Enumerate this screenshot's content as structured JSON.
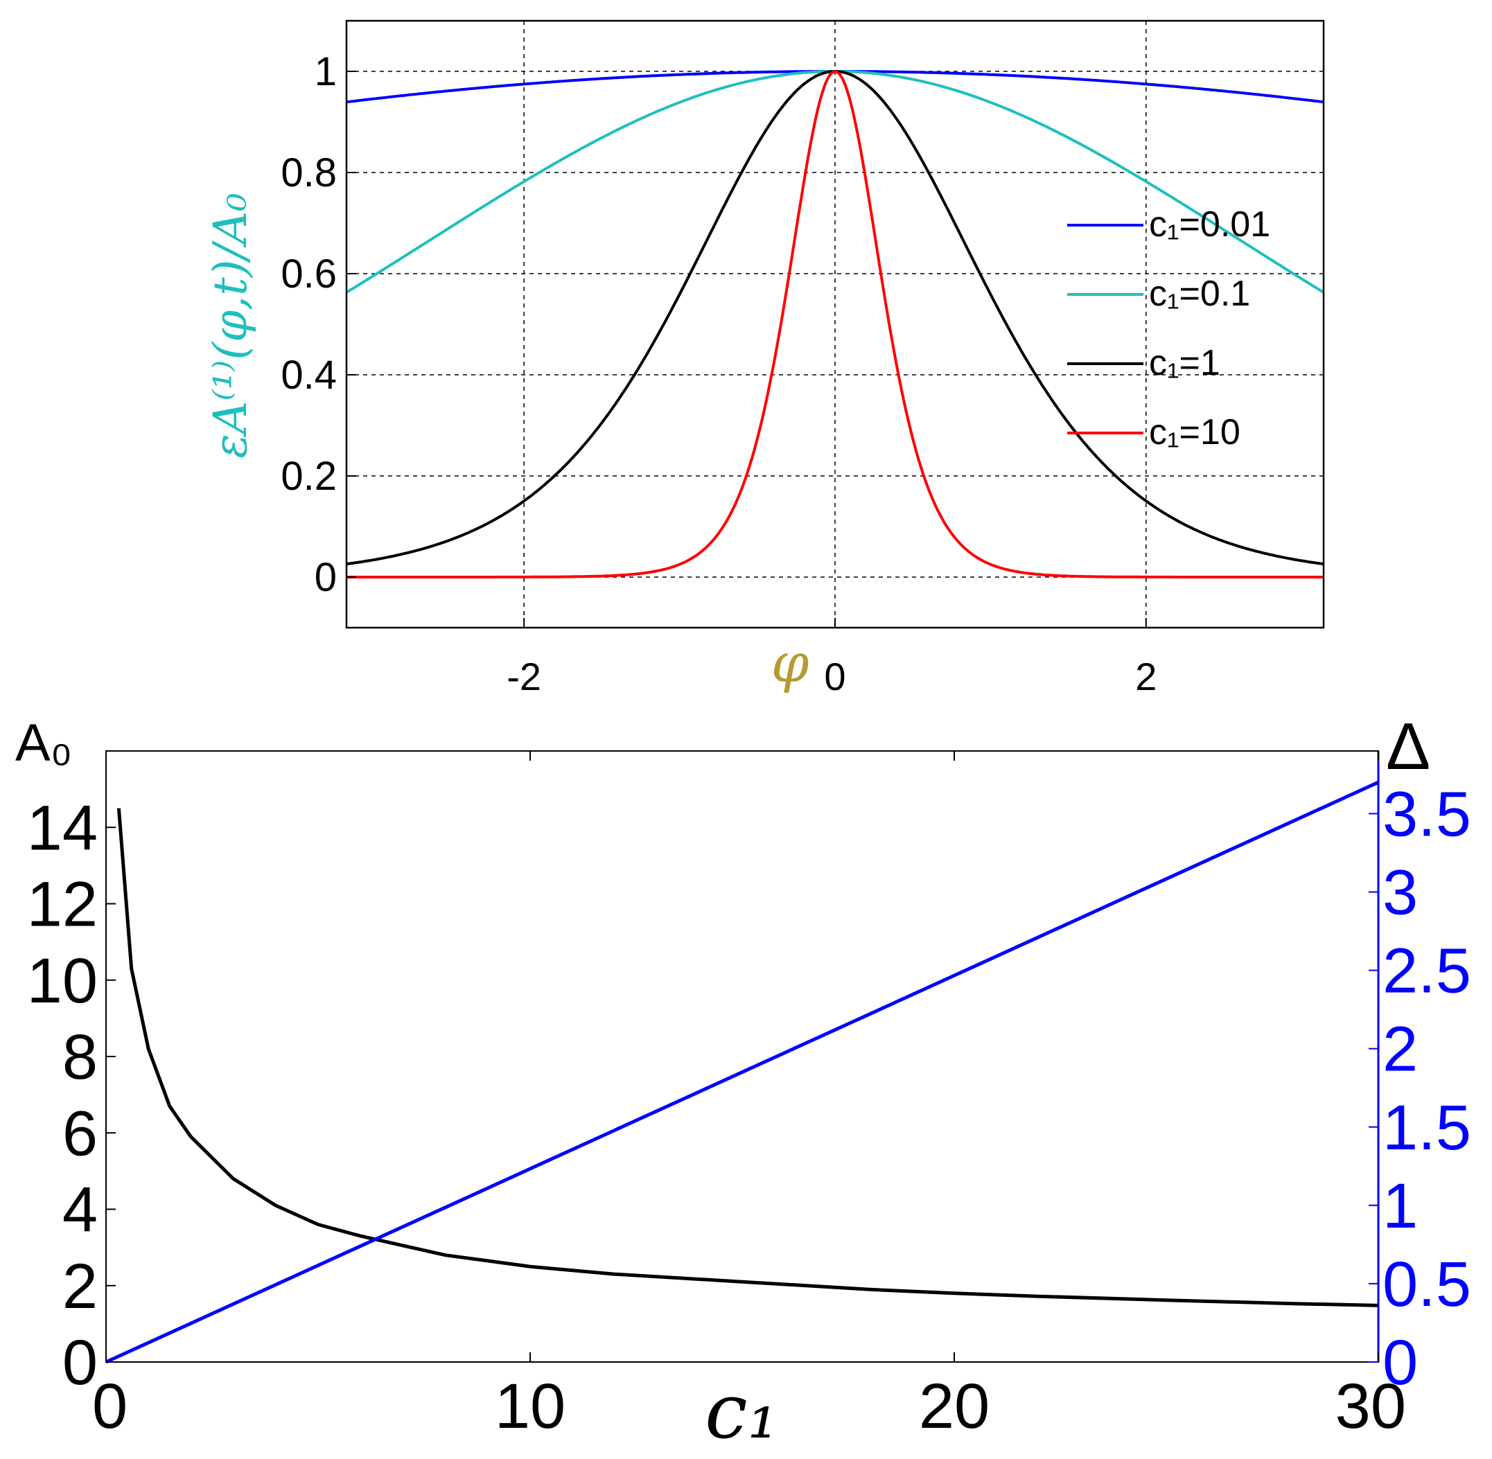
{
  "chart_data": [
    {
      "type": "line",
      "title": "",
      "xlabel": "φ",
      "ylabel": "εA⁽¹⁾(φ,t)/A₀",
      "xlim": [
        -3.1416,
        3.1416
      ],
      "ylim": [
        -0.1,
        1.1
      ],
      "x_ticks": [
        -2,
        0,
        2
      ],
      "y_ticks": [
        0,
        0.2,
        0.4,
        0.6,
        0.8,
        1
      ],
      "grid": true,
      "legend_position": "right",
      "series": [
        {
          "name": "c₁=0.01",
          "color": "#0000ff",
          "c1": 0.01
        },
        {
          "name": "c₁=0.1",
          "color": "#1fbfbf",
          "c1": 0.1
        },
        {
          "name": "c₁=1",
          "color": "#000000",
          "c1": 1
        },
        {
          "name": "c₁=10",
          "color": "#ff0000",
          "c1": 10
        }
      ]
    },
    {
      "type": "line",
      "title": "",
      "xlabel": "c₁",
      "ylabel_left": "A₀",
      "ylabel_right": "Δ",
      "xlim": [
        0,
        30
      ],
      "ylim_left": [
        0,
        16
      ],
      "ylim_right": [
        0,
        3.9
      ],
      "x_ticks": [
        0,
        10,
        20,
        30
      ],
      "y_ticks_left": [
        0,
        2,
        4,
        6,
        8,
        10,
        12,
        14
      ],
      "y_ticks_right": [
        0,
        0.5,
        1,
        1.5,
        2,
        2.5,
        3,
        3.5
      ],
      "grid": false,
      "series": [
        {
          "name": "A₀",
          "axis": "left",
          "color": "#000000",
          "x": [
            0.3,
            0.6,
            1,
            1.5,
            2,
            3,
            4,
            5,
            6,
            7,
            8,
            10,
            12,
            15,
            18,
            20,
            22,
            25,
            28,
            30
          ],
          "y": [
            14.5,
            10.3,
            8.2,
            6.7,
            5.9,
            4.8,
            4.1,
            3.6,
            3.3,
            3.05,
            2.8,
            2.5,
            2.3,
            2.1,
            1.9,
            1.8,
            1.72,
            1.62,
            1.53,
            1.48
          ]
        },
        {
          "name": "Δ",
          "axis": "right",
          "color": "#0000ff",
          "x": [
            0,
            30
          ],
          "y": [
            0,
            3.7
          ]
        }
      ]
    }
  ]
}
